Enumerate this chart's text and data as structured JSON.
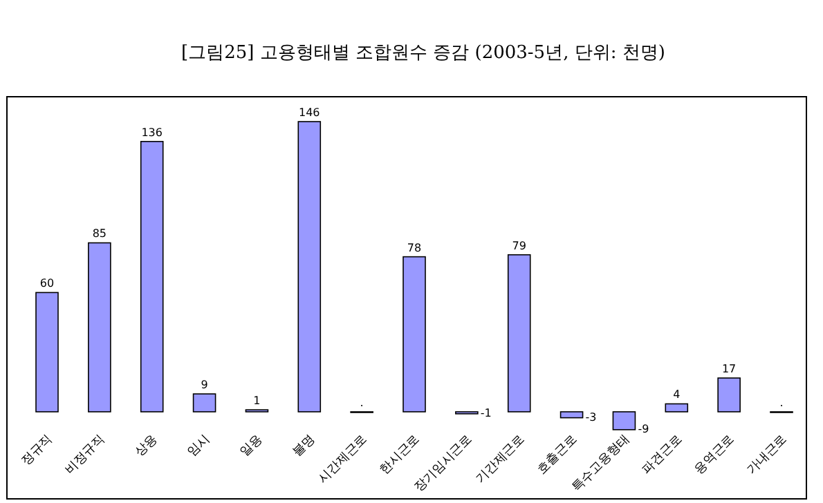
{
  "chart_data": {
    "type": "bar",
    "title": "[그림25] 고용형태별 조합원수 증감 (2003-5년, 단위: 천명)",
    "categories": [
      "정규직",
      "비정규직",
      "상용",
      "임시",
      "일용",
      "불명",
      "시간제근로",
      "한시근로",
      "장기임시근로",
      "기간제근로",
      "호출근로",
      "특수고용형태",
      "파견근로",
      "용역근로",
      "가내근로"
    ],
    "values": [
      60,
      85,
      136,
      9,
      1,
      146,
      0,
      78,
      -1,
      79,
      -3,
      -9,
      4,
      17,
      0
    ],
    "value_labels": [
      "60",
      "85",
      "136",
      "9",
      "1",
      "146",
      ".",
      "78",
      "-1",
      "79",
      "-3",
      "-9",
      "4",
      "17",
      "."
    ],
    "color": "#9999ff"
  }
}
